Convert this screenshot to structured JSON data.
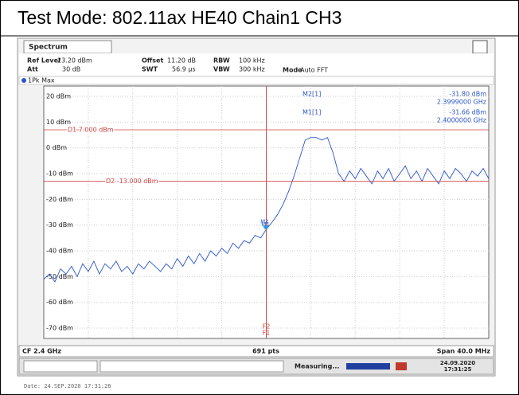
{
  "header": "Test Mode: 802.11ax HE40 Chain1 CH3",
  "chart_data": {
    "type": "line",
    "title": "Spectrum",
    "settings": [
      [
        "Ref Level",
        "23.20 dBm"
      ],
      [
        "Offset",
        "11.20 dB"
      ],
      [
        "RBW",
        "100 kHz"
      ],
      [
        "Att",
        "30 dB"
      ],
      [
        "SWT",
        "56.9 µs"
      ],
      [
        "VBW",
        "300 kHz"
      ],
      [
        "Mode",
        "Auto FFT"
      ]
    ],
    "xlim": [
      2.38,
      2.42
    ],
    "ylim": [
      -74,
      24
    ],
    "yticks": [
      {
        "value": 20,
        "label": "20 dBm"
      },
      {
        "value": 10,
        "label": "10 dBm"
      },
      {
        "value": 0,
        "label": "0 dBm"
      },
      {
        "value": -10,
        "label": "-10 dBm"
      },
      {
        "value": -20,
        "label": "-20 dBm"
      },
      {
        "value": -30,
        "label": "-30 dBm"
      },
      {
        "value": -40,
        "label": "-40 dBm"
      },
      {
        "value": -50,
        "label": "-50 dBm"
      },
      {
        "value": -60,
        "label": "-60 dBm"
      },
      {
        "value": -70,
        "label": "-70 dBm"
      }
    ],
    "grid": true,
    "x": [
      2.38,
      2.3805,
      2.381,
      2.3815,
      2.382,
      2.3825,
      2.383,
      2.3835,
      2.384,
      2.3845,
      2.385,
      2.3855,
      2.386,
      2.3865,
      2.387,
      2.3875,
      2.388,
      2.3885,
      2.389,
      2.3895,
      2.39,
      2.3905,
      2.391,
      2.3915,
      2.392,
      2.3925,
      2.393,
      2.3935,
      2.394,
      2.3945,
      2.395,
      2.3955,
      2.396,
      2.3965,
      2.397,
      2.3975,
      2.398,
      2.3985,
      2.399,
      2.3995,
      2.4,
      2.4005,
      2.401,
      2.4015,
      2.402,
      2.4025,
      2.403,
      2.4035,
      2.404,
      2.4045,
      2.405,
      2.4055,
      2.406,
      2.4065,
      2.407,
      2.4075,
      2.408,
      2.4085,
      2.409,
      2.4095,
      2.41,
      2.4105,
      2.411,
      2.4115,
      2.412,
      2.4125,
      2.413,
      2.4135,
      2.414,
      2.4145,
      2.415,
      2.4155,
      2.416,
      2.4165,
      2.417,
      2.4175,
      2.418,
      2.4185,
      2.419,
      2.4195,
      2.42
    ],
    "series": [
      {
        "name": "1Pk Max",
        "color": "#2a55c8",
        "values": [
          -51,
          -49,
          -52,
          -47,
          -49,
          -46,
          -50,
          -45,
          -48,
          -44,
          -49,
          -45,
          -47,
          -44,
          -48,
          -46,
          -49,
          -45,
          -47,
          -44,
          -46,
          -48,
          -45,
          -47,
          -43,
          -46,
          -42,
          -45,
          -41,
          -44,
          -40,
          -42,
          -39,
          -41,
          -37,
          -39,
          -36,
          -37,
          -34,
          -35,
          -31.66,
          -29,
          -26,
          -22,
          -17,
          -11,
          -4,
          3,
          4,
          4,
          3,
          4,
          -2,
          -10,
          -13,
          -9,
          -12,
          -8,
          -11,
          -14,
          -9,
          -12,
          -8,
          -13,
          -10,
          -7,
          -12,
          -9,
          -13,
          -8,
          -11,
          -14,
          -9,
          -12,
          -8,
          -10,
          -13,
          -9,
          -11,
          -8,
          -12
        ]
      }
    ],
    "hlines": [
      {
        "label": "D1 7.000 dBm",
        "value": 7
      },
      {
        "label": "D2 -13.000 dBm",
        "value": -13
      }
    ],
    "vlines": [
      {
        "label": "F1",
        "x": 2.4
      },
      {
        "label": "F2",
        "x": 2.4
      }
    ],
    "markers": [
      {
        "name": "M2[1]",
        "tag": "M2",
        "x": 2.3999,
        "value": -31.8,
        "value_label": "-31.80 dBm",
        "x_label": "2.3999000 GHz"
      },
      {
        "name": "M1[1]",
        "tag": "M1",
        "x": 2.4,
        "value": -31.66,
        "value_label": "-31.66 dBm",
        "x_label": "2.4000000 GHz"
      }
    ],
    "x_labels": [
      "CF 2.4 GHz",
      "691 pts",
      "Span 40.0 MHz"
    ],
    "status": [
      "Measuring...",
      "24.09.2020",
      "17:31:25"
    ]
  },
  "footer": "Date: 24.SEP.2020  17:31:26"
}
